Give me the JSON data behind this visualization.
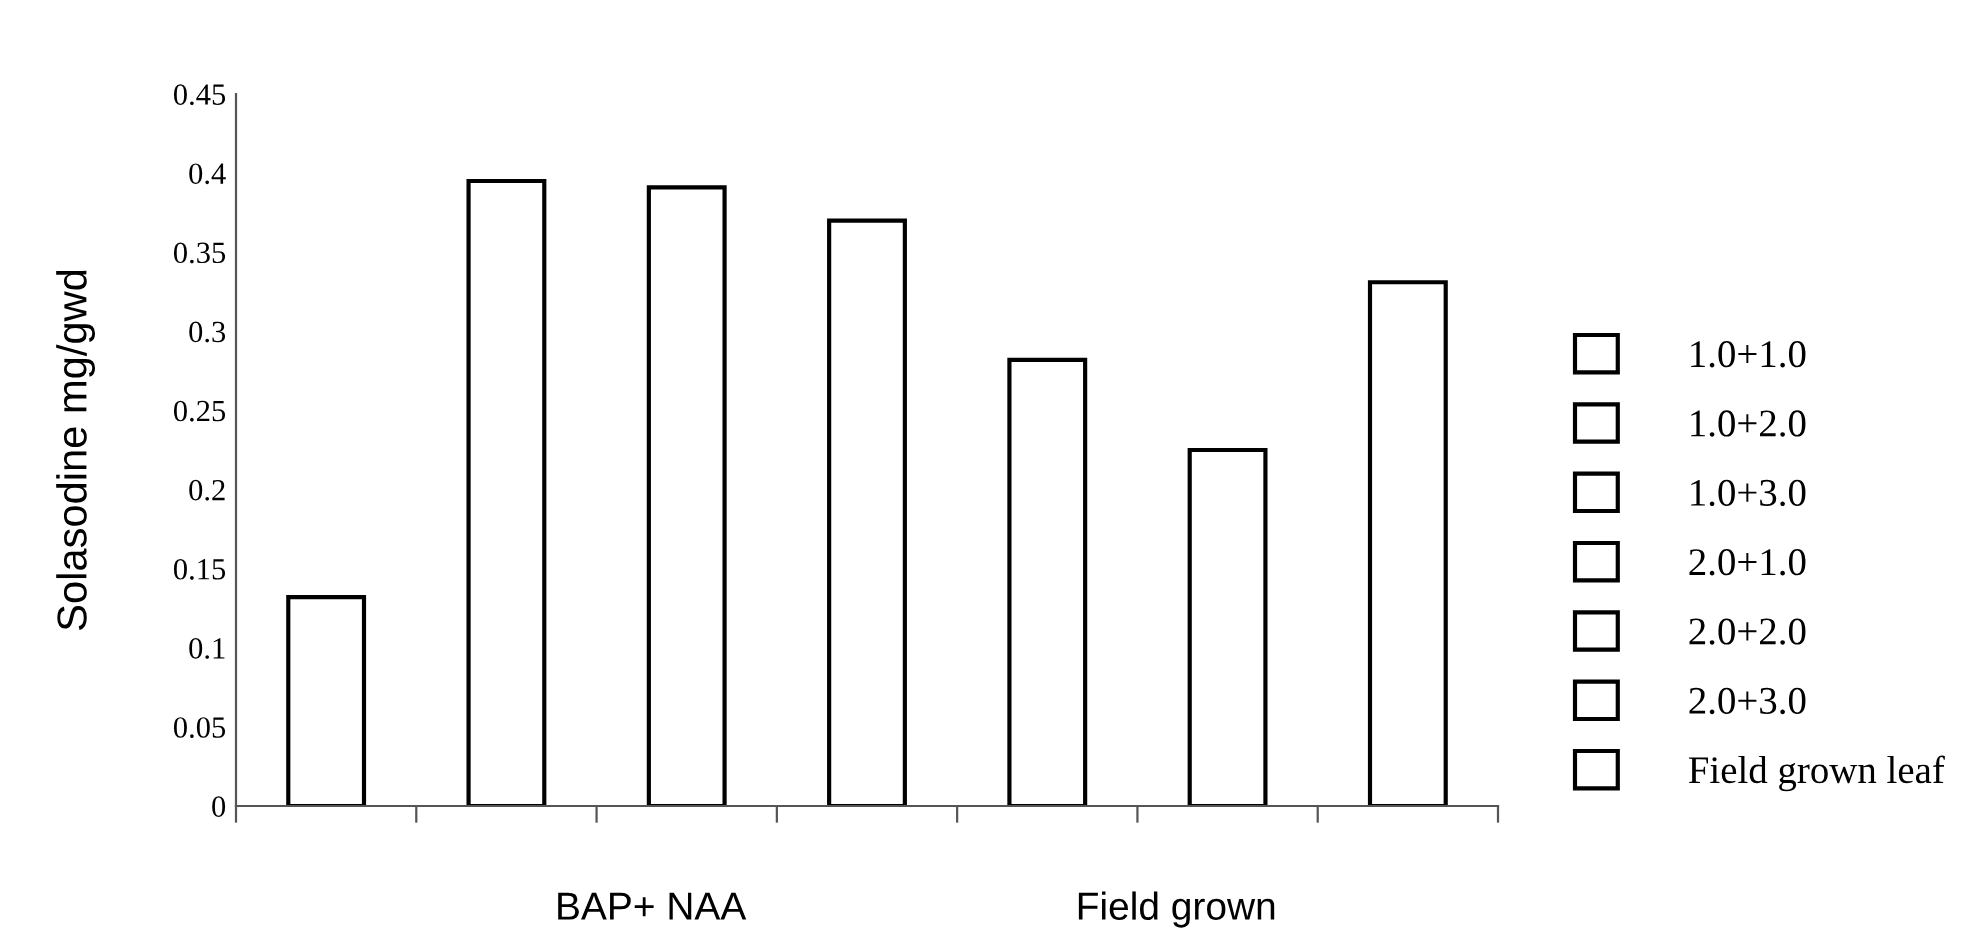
{
  "chart_data": {
    "type": "bar",
    "ylabel": "Solasodine mg/gwd",
    "xlabel": "BAP+ NAA",
    "annotations": [
      "Field grown"
    ],
    "categories": [
      null,
      null,
      null,
      null,
      null,
      null,
      null
    ],
    "series": [
      {
        "name": "1.0+1.0",
        "color": "#ffffff",
        "values": [
          0.132,
          null,
          null,
          null,
          null,
          null,
          null
        ]
      },
      {
        "name": "1.0+2.0",
        "color": "#ffffff",
        "values": [
          null,
          0.395,
          null,
          null,
          null,
          null,
          null
        ]
      },
      {
        "name": "1.0+3.0",
        "color": "#ffffff",
        "values": [
          null,
          null,
          0.391,
          null,
          null,
          null,
          null
        ]
      },
      {
        "name": "2.0+1.0",
        "color": "#ffffff",
        "values": [
          null,
          null,
          null,
          0.37,
          null,
          null,
          null
        ]
      },
      {
        "name": "2.0+2.0",
        "color": "#ffffff",
        "values": [
          null,
          null,
          null,
          null,
          0.282,
          null,
          null
        ]
      },
      {
        "name": "2.0+3.0",
        "color": "#ffffff",
        "values": [
          null,
          null,
          null,
          null,
          null,
          0.225,
          null
        ]
      },
      {
        "name": "Field grown leaf",
        "color": "#ffffff",
        "values": [
          null,
          null,
          null,
          null,
          null,
          null,
          0.331
        ]
      }
    ],
    "ylim": [
      0,
      0.45
    ],
    "yticks": [
      0,
      0.05,
      0.1,
      0.15,
      0.2,
      0.25,
      0.3,
      0.35,
      0.4,
      0.45
    ],
    "grid": false,
    "legend": "right"
  }
}
